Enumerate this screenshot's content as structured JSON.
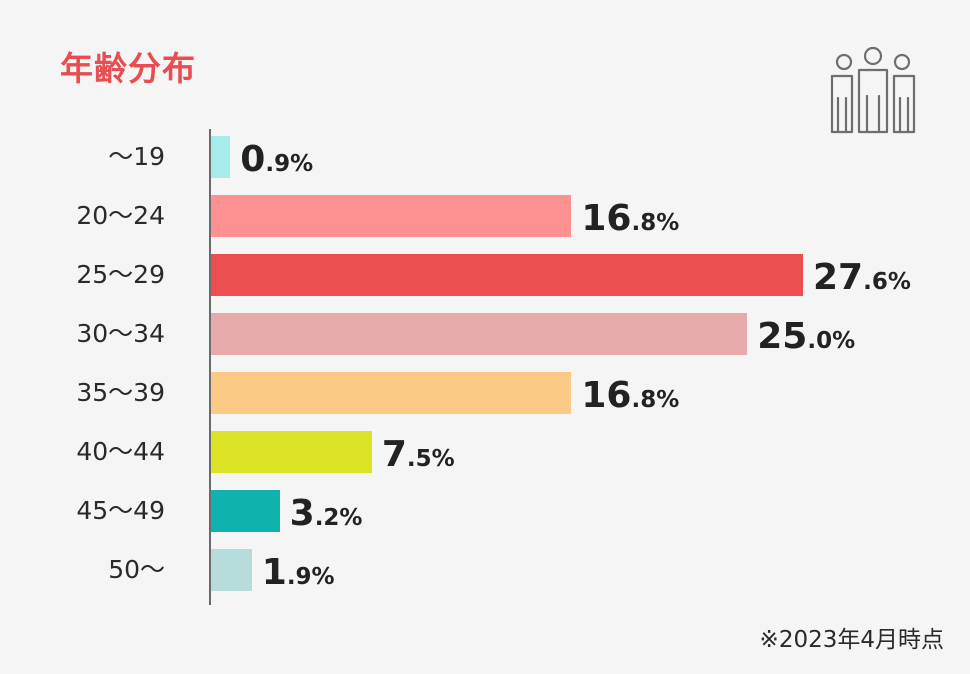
{
  "header": {
    "title": "年齢分布",
    "icon": "people-group-icon"
  },
  "footnote": "※2023年4月時点",
  "chart_data": {
    "type": "bar",
    "orientation": "horizontal",
    "title": "年齢分布",
    "xlabel": "",
    "ylabel": "",
    "categories": [
      "〜19",
      "20〜24",
      "25〜29",
      "30〜34",
      "35〜39",
      "40〜44",
      "45〜49",
      "50〜"
    ],
    "values": [
      0.9,
      16.8,
      27.6,
      25.0,
      16.8,
      7.5,
      3.2,
      1.9
    ],
    "unit": "%",
    "xlim": [
      0,
      30
    ],
    "grid": false,
    "legend": "none",
    "annotations": [
      "※2023年4月時点"
    ],
    "bars": [
      {
        "label": "〜19",
        "int": "0",
        "dec": ".9%",
        "color": "#a6ecea"
      },
      {
        "label": "20〜24",
        "int": "16",
        "dec": ".8%",
        "color": "#fd9090"
      },
      {
        "label": "25〜29",
        "int": "27",
        "dec": ".6%",
        "color": "#ec4d4f"
      },
      {
        "label": "30〜34",
        "int": "25",
        "dec": ".0%",
        "color": "#e6aaaa"
      },
      {
        "label": "35〜39",
        "int": "16",
        "dec": ".8%",
        "color": "#fbca87"
      },
      {
        "label": "40〜44",
        "int": "7",
        "dec": ".5%",
        "color": "#dce324"
      },
      {
        "label": "45〜49",
        "int": "3",
        "dec": ".2%",
        "color": "#10b2ae"
      },
      {
        "label": "50〜",
        "int": "1",
        "dec": ".9%",
        "color": "#b7dcdc"
      }
    ]
  }
}
